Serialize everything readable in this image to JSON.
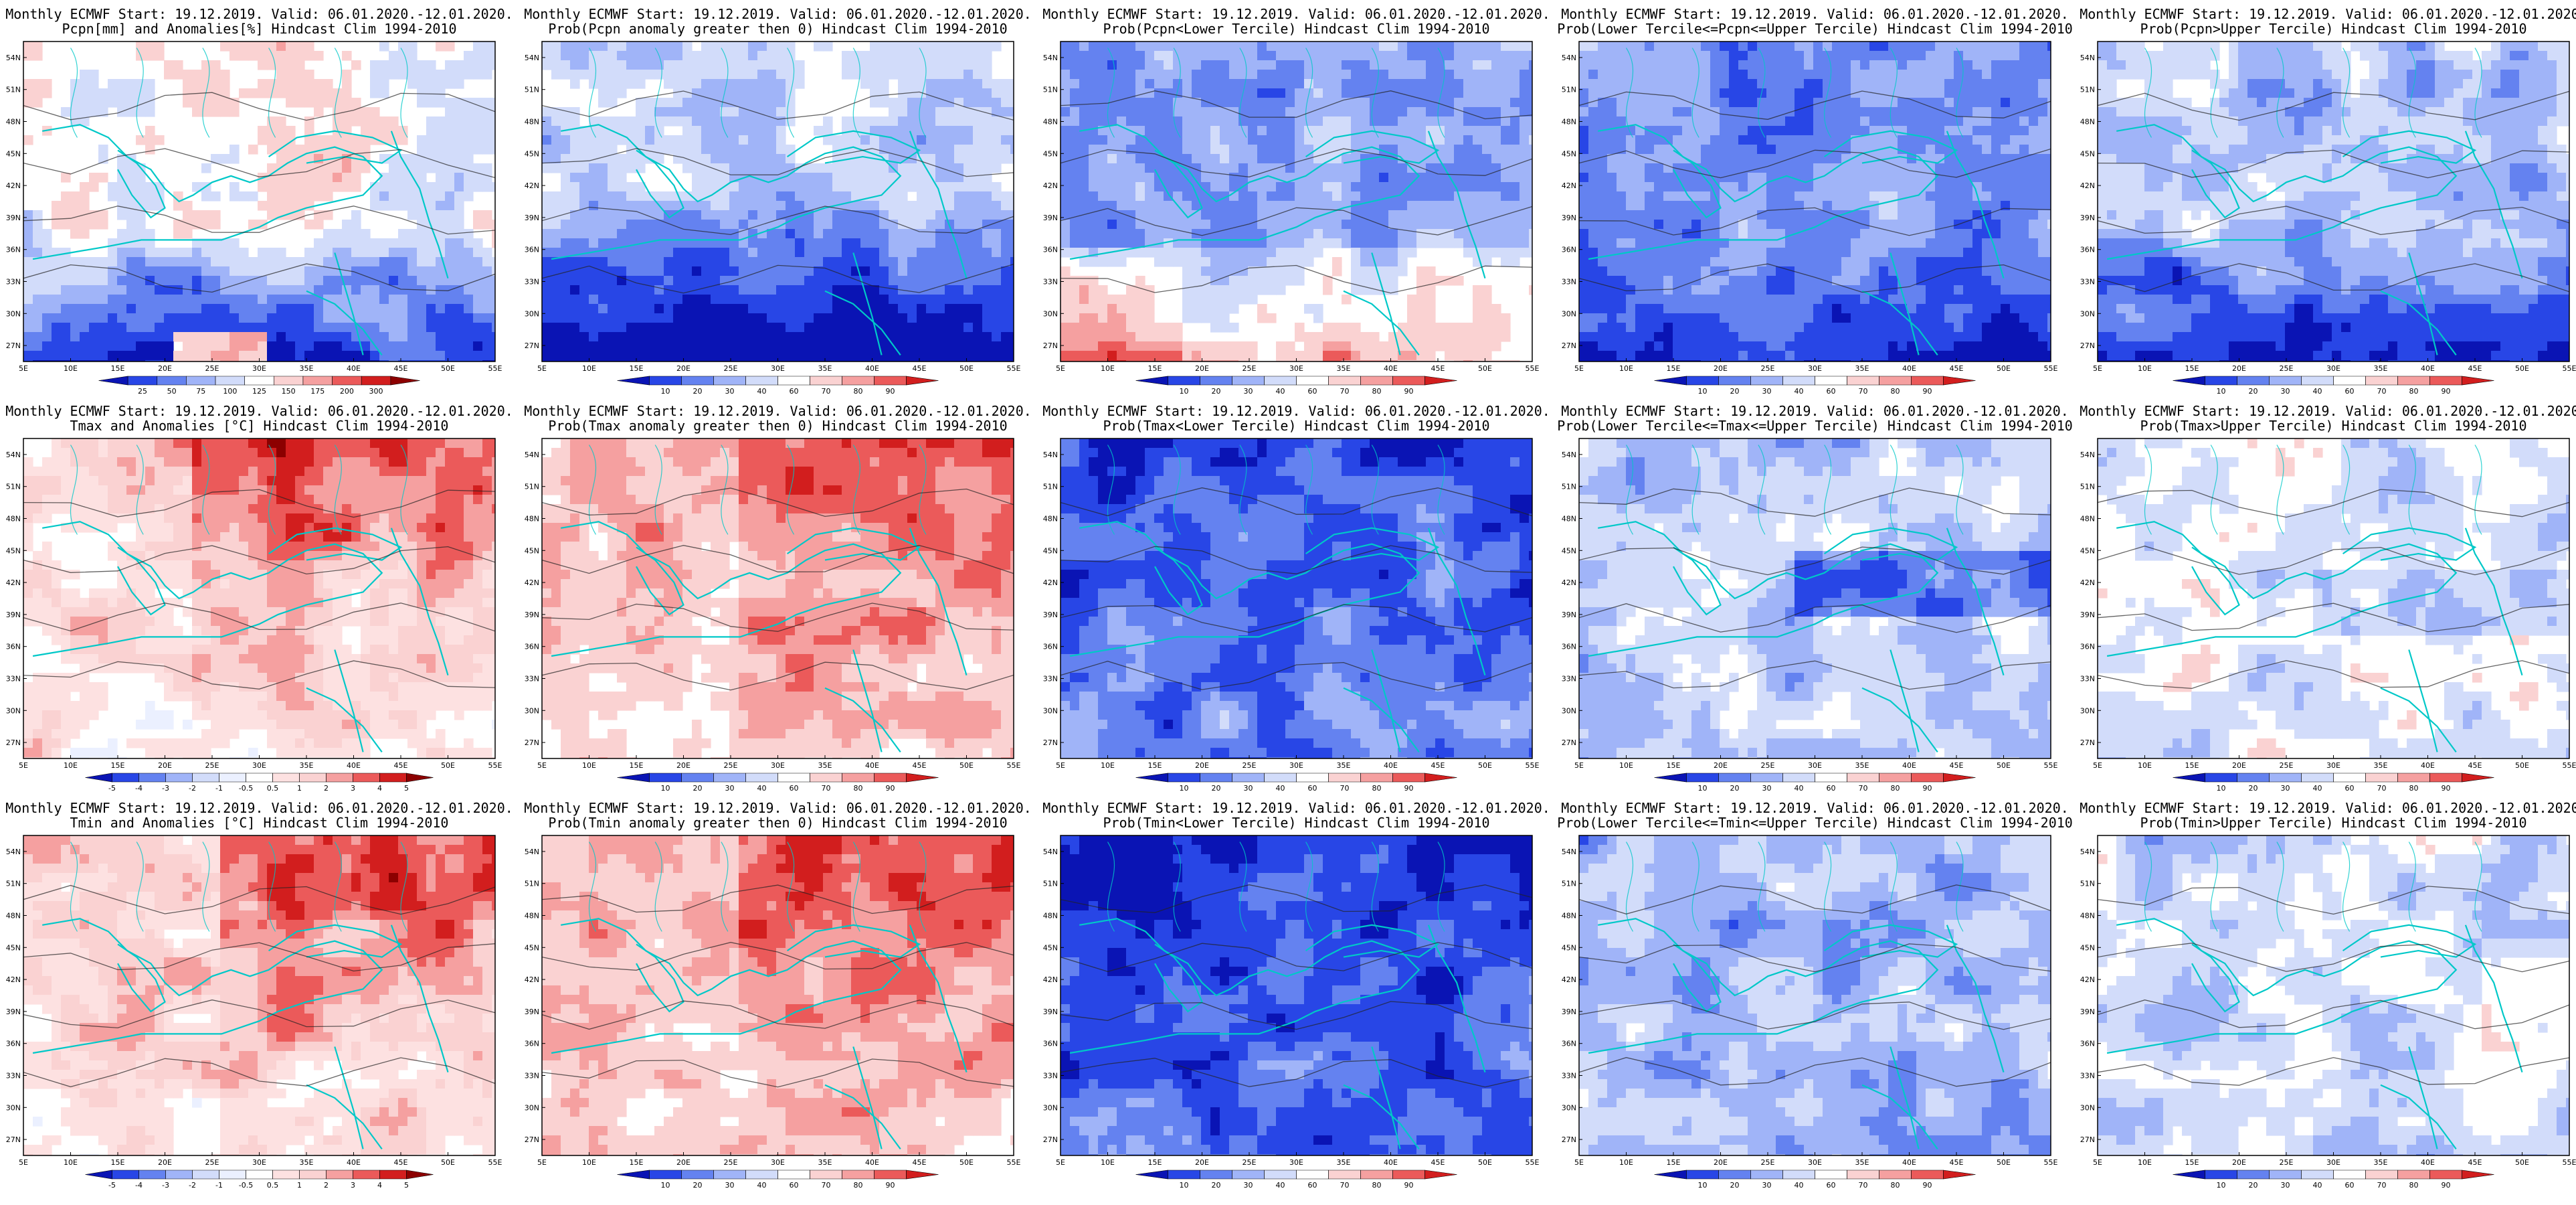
{
  "panels": [
    {
      "title1": "Monthly ECMWF Start: 19.12.2019. Valid: 06.01.2020.-12.01.2020.",
      "title2": "Pcpn[mm] and Anomalies[%] Hindcast Clim 1994-2010",
      "scale": "pcpn",
      "field": "pcpn_anom"
    },
    {
      "title1": "Monthly ECMWF Start: 19.12.2019. Valid: 06.01.2020.-12.01.2020.",
      "title2": "Prob(Pcpn anomaly greater then 0) Hindcast Clim 1994-2010",
      "scale": "prob",
      "field": "pcpn_pos"
    },
    {
      "title1": "Monthly ECMWF Start: 19.12.2019. Valid: 06.01.2020.-12.01.2020.",
      "title2": "Prob(Pcpn<Lower Tercile) Hindcast Clim 1994-2010",
      "scale": "prob",
      "field": "pcpn_low"
    },
    {
      "title1": "Monthly ECMWF Start: 19.12.2019. Valid: 06.01.2020.-12.01.2020.",
      "title2": "Prob(Lower Tercile<=Pcpn<=Upper Tercile) Hindcast Clim 1994-2010",
      "scale": "prob",
      "field": "pcpn_mid"
    },
    {
      "title1": "Monthly ECMWF Start: 19.12.2019. Valid: 06.01.2020.-12.01.2020.",
      "title2": "Prob(Pcpn>Upper Tercile) Hindcast Clim 1994-2010",
      "scale": "prob",
      "field": "pcpn_up"
    },
    {
      "title1": "Monthly ECMWF Start: 19.12.2019. Valid: 06.01.2020.-12.01.2020.",
      "title2": "Tmax and Anomalies [°C] Hindcast Clim 1994-2010",
      "scale": "temp",
      "field": "tmax_anom"
    },
    {
      "title1": "Monthly ECMWF Start: 19.12.2019. Valid: 06.01.2020.-12.01.2020.",
      "title2": "Prob(Tmax anomaly greater then 0) Hindcast Clim 1994-2010",
      "scale": "prob",
      "field": "tmax_pos"
    },
    {
      "title1": "Monthly ECMWF Start: 19.12.2019. Valid: 06.01.2020.-12.01.2020.",
      "title2": "Prob(Tmax<Lower Tercile) Hindcast Clim 1994-2010",
      "scale": "prob",
      "field": "tmax_low"
    },
    {
      "title1": "Monthly ECMWF Start: 19.12.2019. Valid: 06.01.2020.-12.01.2020.",
      "title2": "Prob(Lower Tercile<=Tmax<=Upper Tercile) Hindcast Clim 1994-2010",
      "scale": "prob",
      "field": "tmax_mid"
    },
    {
      "title1": "Monthly ECMWF Start: 19.12.2019. Valid: 06.01.2020.-12.01.2020.",
      "title2": "Prob(Tmax>Upper Tercile) Hindcast Clim 1994-2010",
      "scale": "prob",
      "field": "tmax_up"
    },
    {
      "title1": "Monthly ECMWF Start: 19.12.2019. Valid: 06.01.2020.-12.01.2020.",
      "title2": "Tmin and Anomalies [°C] Hindcast Clim 1994-2010",
      "scale": "temp",
      "field": "tmin_anom"
    },
    {
      "title1": "Monthly ECMWF Start: 19.12.2019. Valid: 06.01.2020.-12.01.2020.",
      "title2": "Prob(Tmin anomaly greater then 0) Hindcast Clim 1994-2010",
      "scale": "prob",
      "field": "tmin_pos"
    },
    {
      "title1": "Monthly ECMWF Start: 19.12.2019. Valid: 06.01.2020.-12.01.2020.",
      "title2": "Prob(Tmin<Lower Tercile) Hindcast Clim 1994-2010",
      "scale": "prob",
      "field": "tmin_low"
    },
    {
      "title1": "Monthly ECMWF Start: 19.12.2019. Valid: 06.01.2020.-12.01.2020.",
      "title2": "Prob(Lower Tercile<=Tmin<=Upper Tercile) Hindcast Clim 1994-2010",
      "scale": "prob",
      "field": "tmin_mid"
    },
    {
      "title1": "Monthly ECMWF Start: 19.12.2019. Valid: 06.01.2020.-12.01.2020.",
      "title2": "Prob(Tmin>Upper Tercile) Hindcast Clim 1994-2010",
      "scale": "prob",
      "field": "tmin_up"
    }
  ],
  "lon_ticks": [
    "5E",
    "10E",
    "15E",
    "20E",
    "25E",
    "30E",
    "35E",
    "40E",
    "45E",
    "50E",
    "55E"
  ],
  "lat_ticks": [
    "27N",
    "30N",
    "33N",
    "36N",
    "39N",
    "42N",
    "45N",
    "48N",
    "51N",
    "54N"
  ],
  "scales": {
    "pcpn": {
      "labels": [
        "25",
        "50",
        "75",
        "100",
        "125",
        "150",
        "175",
        "200",
        "300"
      ],
      "colors": [
        "#0a14b4",
        "#2846e6",
        "#6482f0",
        "#a0b4f8",
        "#d2dcfa",
        "#ffffff",
        "#fad2d2",
        "#f5a0a0",
        "#eb5a5a",
        "#d21e1e",
        "#8c0000"
      ]
    },
    "prob": {
      "labels": [
        "10",
        "20",
        "30",
        "40",
        "60",
        "70",
        "80",
        "90"
      ],
      "colors": [
        "#0a14b4",
        "#2846e6",
        "#6482f0",
        "#a0b4f8",
        "#d2dcfa",
        "#ffffff",
        "#fad2d2",
        "#f5a0a0",
        "#eb5a5a",
        "#d21e1e"
      ]
    },
    "temp": {
      "labels": [
        "-5",
        "-4",
        "-3",
        "-2",
        "-1",
        "-0.5",
        "0.5",
        "1",
        "2",
        "3",
        "4",
        "5"
      ],
      "colors": [
        "#0a14b4",
        "#2846e6",
        "#6482f0",
        "#a0b4f8",
        "#d2dcfa",
        "#ebf0ff",
        "#ffffff",
        "#fde1e1",
        "#fad2d2",
        "#f5a0a0",
        "#eb5a5a",
        "#d21e1e",
        "#8c0000"
      ]
    }
  },
  "colors": {
    "coast": "#00c8c8",
    "contour": "#222222",
    "background": "#ffffff"
  }
}
